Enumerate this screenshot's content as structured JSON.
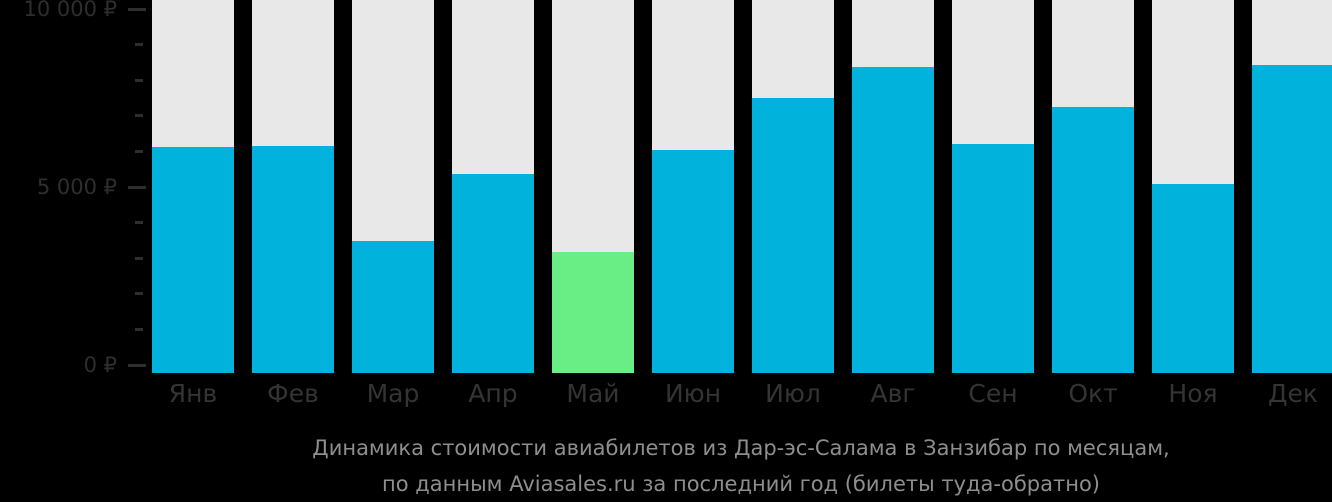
{
  "chart_data": {
    "type": "bar",
    "title": "Динамика стоимости авиабилетов из Дар-эс-Салама в Занзибар по месяцам,",
    "subtitle": "по данным Aviasales.ru за последний год (билеты туда-обратно)",
    "categories": [
      "Янв",
      "Фев",
      "Мар",
      "Апр",
      "Май",
      "Июн",
      "Июл",
      "Авг",
      "Сен",
      "Окт",
      "Ноя",
      "Дек"
    ],
    "values": [
      6130,
      6160,
      3480,
      5360,
      3170,
      6030,
      7500,
      8380,
      6210,
      7240,
      5080,
      8430
    ],
    "highlight_index": 4,
    "highlight_meaning": "cheapest-month",
    "currency": "₽",
    "ylabel": "",
    "xlabel": "",
    "ylim": [
      0,
      10000
    ],
    "grid": false,
    "legend": false,
    "yaxis": {
      "max": 10000,
      "minor_step": 1000,
      "major_step": 5000,
      "tick_labels": [
        {
          "value": 10000,
          "label": "10 000 ₽"
        },
        {
          "value": 5000,
          "label": "5 000 ₽"
        },
        {
          "value": 0,
          "label": "0 ₽"
        }
      ]
    },
    "colors": {
      "background": "#000000",
      "bar": "#00B2DC",
      "bar_highlight": "#69ED85",
      "bar_track": "#E8E8E8",
      "axis_text": "#2E2E2E",
      "axis_tick": "#2E2E2E",
      "month_text": "#343434",
      "caption_text": "#8E8E8E"
    }
  },
  "caption": {
    "line1": "Динамика стоимости авиабилетов из Дар-эс-Салама в Занзибар по месяцам,",
    "line2": "по данным Aviasales.ru за последний год (билеты туда-обратно)"
  }
}
